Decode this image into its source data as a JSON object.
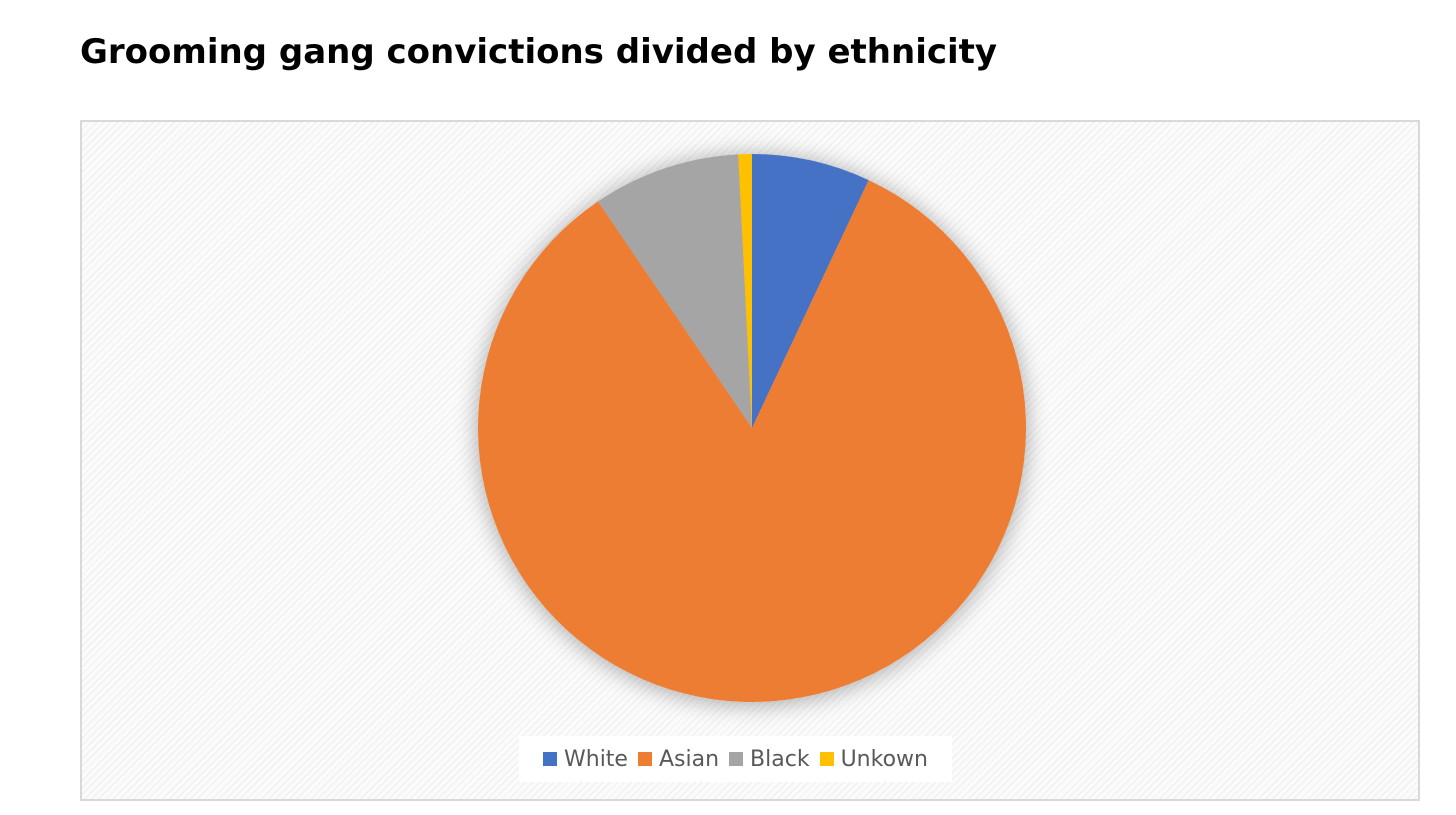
{
  "title": "Grooming gang convictions divided by ethnicity",
  "chart_data": {
    "type": "pie",
    "title": "Grooming gang convictions divided by ethnicity",
    "categories": [
      "White",
      "Asian",
      "Black",
      "Unkown"
    ],
    "values": [
      7.0,
      83.5,
      8.7,
      0.8
    ],
    "unit": "percent of convictions (estimated)",
    "colors": [
      "#4472c4",
      "#ed7d31",
      "#a5a5a5",
      "#ffc000"
    ],
    "start_angle": "12 o'clock, clockwise",
    "legend_position": "bottom",
    "grid": false
  },
  "legend": {
    "items": [
      {
        "label": "White",
        "color": "#4472c4"
      },
      {
        "label": "Asian",
        "color": "#ed7d31"
      },
      {
        "label": "Black",
        "color": "#a5a5a5"
      },
      {
        "label": "Unkown",
        "color": "#ffc000"
      }
    ]
  }
}
